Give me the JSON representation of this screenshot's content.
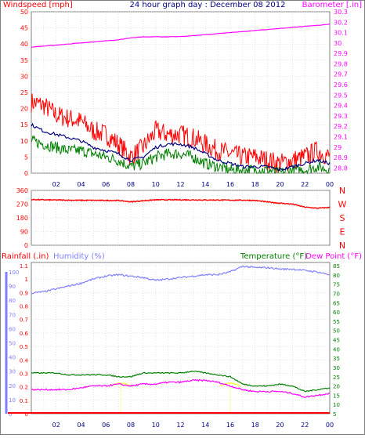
{
  "title": "24 hour graph day : December 08 2012",
  "colors": {
    "wind": "#ff0000",
    "gust": "#ff0000",
    "avg": "#000080",
    "low": "#008000",
    "barometer": "#ff00ff",
    "direction": "#ff0000",
    "rain": "#ff0000",
    "humidity": "#8080ff",
    "temperature": "#008000",
    "dewpoint": "#ff00ff",
    "sun": "#ffff66",
    "grid": "#c8c8c8",
    "axis": "#808080"
  },
  "chart_data": [
    {
      "type": "line",
      "title": "24 hour graph day : December 08 2012",
      "ylabel_left": "Windspeed [mph]",
      "ylabel_right": "Barometer [.in]",
      "ylim_left": [
        0,
        50
      ],
      "ylim_right": [
        28.75,
        30.3
      ],
      "left_ticks": [
        "0",
        "5",
        "10",
        "15",
        "20",
        "25",
        "30",
        "35",
        "40",
        "45",
        "50"
      ],
      "right_ticks": [
        "28.8",
        "28.9",
        "29",
        "29.1",
        "29.2",
        "29.3",
        "29.4",
        "29.5",
        "29.6",
        "29.7",
        "29.8",
        "29.9",
        "30",
        "30.1",
        "30.2",
        "30.3"
      ],
      "x_ticks": [
        "02",
        "04",
        "06",
        "08",
        "10",
        "12",
        "14",
        "16",
        "18",
        "20",
        "22",
        "00"
      ],
      "x_hours": [
        0,
        1,
        2,
        3,
        4,
        5,
        6,
        7,
        8,
        9,
        10,
        11,
        12,
        13,
        14,
        15,
        16,
        17,
        18,
        19,
        20,
        21,
        22,
        23,
        24
      ],
      "series": [
        {
          "name": "gust",
          "axis": "left",
          "values": [
            22,
            21,
            18,
            17,
            16,
            13,
            12,
            9,
            5,
            8,
            13,
            12,
            12,
            11,
            9,
            7,
            6,
            5,
            5,
            4,
            3,
            4,
            5,
            7,
            5
          ]
        },
        {
          "name": "average",
          "axis": "left",
          "values": [
            15,
            13,
            12,
            11,
            10,
            8,
            7,
            6,
            4,
            5,
            8,
            9,
            9,
            8,
            6,
            4,
            3,
            2,
            2,
            2,
            1,
            2,
            3,
            4,
            3
          ]
        },
        {
          "name": "low",
          "axis": "left",
          "values": [
            10,
            9,
            8,
            7,
            7,
            6,
            5,
            4,
            2,
            3,
            5,
            6,
            6,
            5,
            3,
            2,
            1,
            1,
            1,
            1,
            0,
            1,
            1,
            2,
            1
          ]
        },
        {
          "name": "barometer",
          "axis": "right",
          "values": [
            29.96,
            29.97,
            29.98,
            29.99,
            30.0,
            30.01,
            30.02,
            30.03,
            30.05,
            30.06,
            30.06,
            30.06,
            30.06,
            30.07,
            30.08,
            30.09,
            30.1,
            30.11,
            30.12,
            30.13,
            30.14,
            30.15,
            30.16,
            30.17,
            30.18
          ]
        }
      ],
      "grid": true
    },
    {
      "type": "line",
      "title": "",
      "ylim": [
        0,
        360
      ],
      "left_ticks": [
        "0",
        "90",
        "180",
        "270",
        "360"
      ],
      "right_labels": [
        "N",
        "W",
        "S",
        "E",
        "N"
      ],
      "x_ticks": [
        "02",
        "04",
        "06",
        "08",
        "10",
        "12",
        "14",
        "16",
        "18",
        "20",
        "22",
        "00"
      ],
      "x_hours": [
        0,
        1,
        2,
        3,
        4,
        5,
        6,
        7,
        8,
        9,
        10,
        11,
        12,
        13,
        14,
        15,
        16,
        17,
        18,
        19,
        20,
        21,
        22,
        23,
        24
      ],
      "series": [
        {
          "name": "wind direction",
          "values": [
            300,
            298,
            297,
            296,
            295,
            295,
            294,
            294,
            285,
            292,
            298,
            298,
            298,
            298,
            297,
            297,
            296,
            296,
            294,
            284,
            276,
            270,
            250,
            243,
            248
          ]
        }
      ],
      "grid": true
    },
    {
      "type": "line",
      "title": "",
      "labels": {
        "rain": "Rainfall (.in)",
        "humidity": "Humidity (%)",
        "temperature": "Temperature (°F)",
        "dewpoint": "Dew Point (°F)"
      },
      "humidity_ticks": [
        "0",
        "10",
        "20",
        "30",
        "40",
        "50",
        "60",
        "70",
        "80",
        "90",
        "100"
      ],
      "rain_ticks": [
        "0",
        "0.1",
        "0.2",
        "0.3",
        "0.4",
        "0.5",
        "0.6",
        "0.7",
        "0.8",
        "0.9",
        "1",
        "1.1"
      ],
      "temp_ticks": [
        "5",
        "10",
        "15",
        "20",
        "25",
        "30",
        "35",
        "40",
        "45",
        "50",
        "55",
        "60",
        "65",
        "70",
        "75",
        "80",
        "85"
      ],
      "ylim_humidity": [
        0,
        100
      ],
      "ylim_rain": [
        0,
        1.1
      ],
      "ylim_temp": [
        5,
        85
      ],
      "x_ticks": [
        "02",
        "04",
        "06",
        "08",
        "10",
        "12",
        "14",
        "16",
        "18",
        "20",
        "22",
        "00"
      ],
      "x_hours": [
        0,
        1,
        2,
        3,
        4,
        5,
        6,
        7,
        8,
        9,
        10,
        11,
        12,
        13,
        14,
        15,
        16,
        17,
        18,
        19,
        20,
        21,
        22,
        23,
        24
      ],
      "series": [
        {
          "name": "Humidity",
          "axis": "humidity",
          "values": [
            85,
            86,
            88,
            90,
            92,
            95,
            97,
            98,
            97,
            96,
            94,
            95,
            96,
            97,
            98,
            98,
            100,
            104,
            103,
            103,
            102,
            102,
            101,
            100,
            98
          ]
        },
        {
          "name": "Temperature",
          "axis": "temp",
          "values": [
            27,
            27,
            27,
            26,
            26,
            26,
            26,
            25,
            25,
            27,
            27,
            27,
            27,
            28,
            27,
            26,
            25,
            21,
            20,
            20,
            21,
            20,
            17,
            18,
            19
          ]
        },
        {
          "name": "Dew Point",
          "axis": "temp",
          "values": [
            18,
            18,
            18,
            18,
            19,
            20,
            20,
            21,
            20,
            21,
            21,
            22,
            22,
            23,
            23,
            22,
            20,
            18,
            17,
            17,
            17,
            16,
            14,
            15,
            16
          ]
        },
        {
          "name": "Rainfall",
          "axis": "rain",
          "values": [
            0,
            0,
            0,
            0,
            0,
            0,
            0,
            0,
            0,
            0,
            0,
            0,
            0,
            0,
            0,
            0,
            0,
            0,
            0,
            0,
            0,
            0,
            0,
            0,
            0
          ]
        }
      ],
      "grid": true
    }
  ]
}
